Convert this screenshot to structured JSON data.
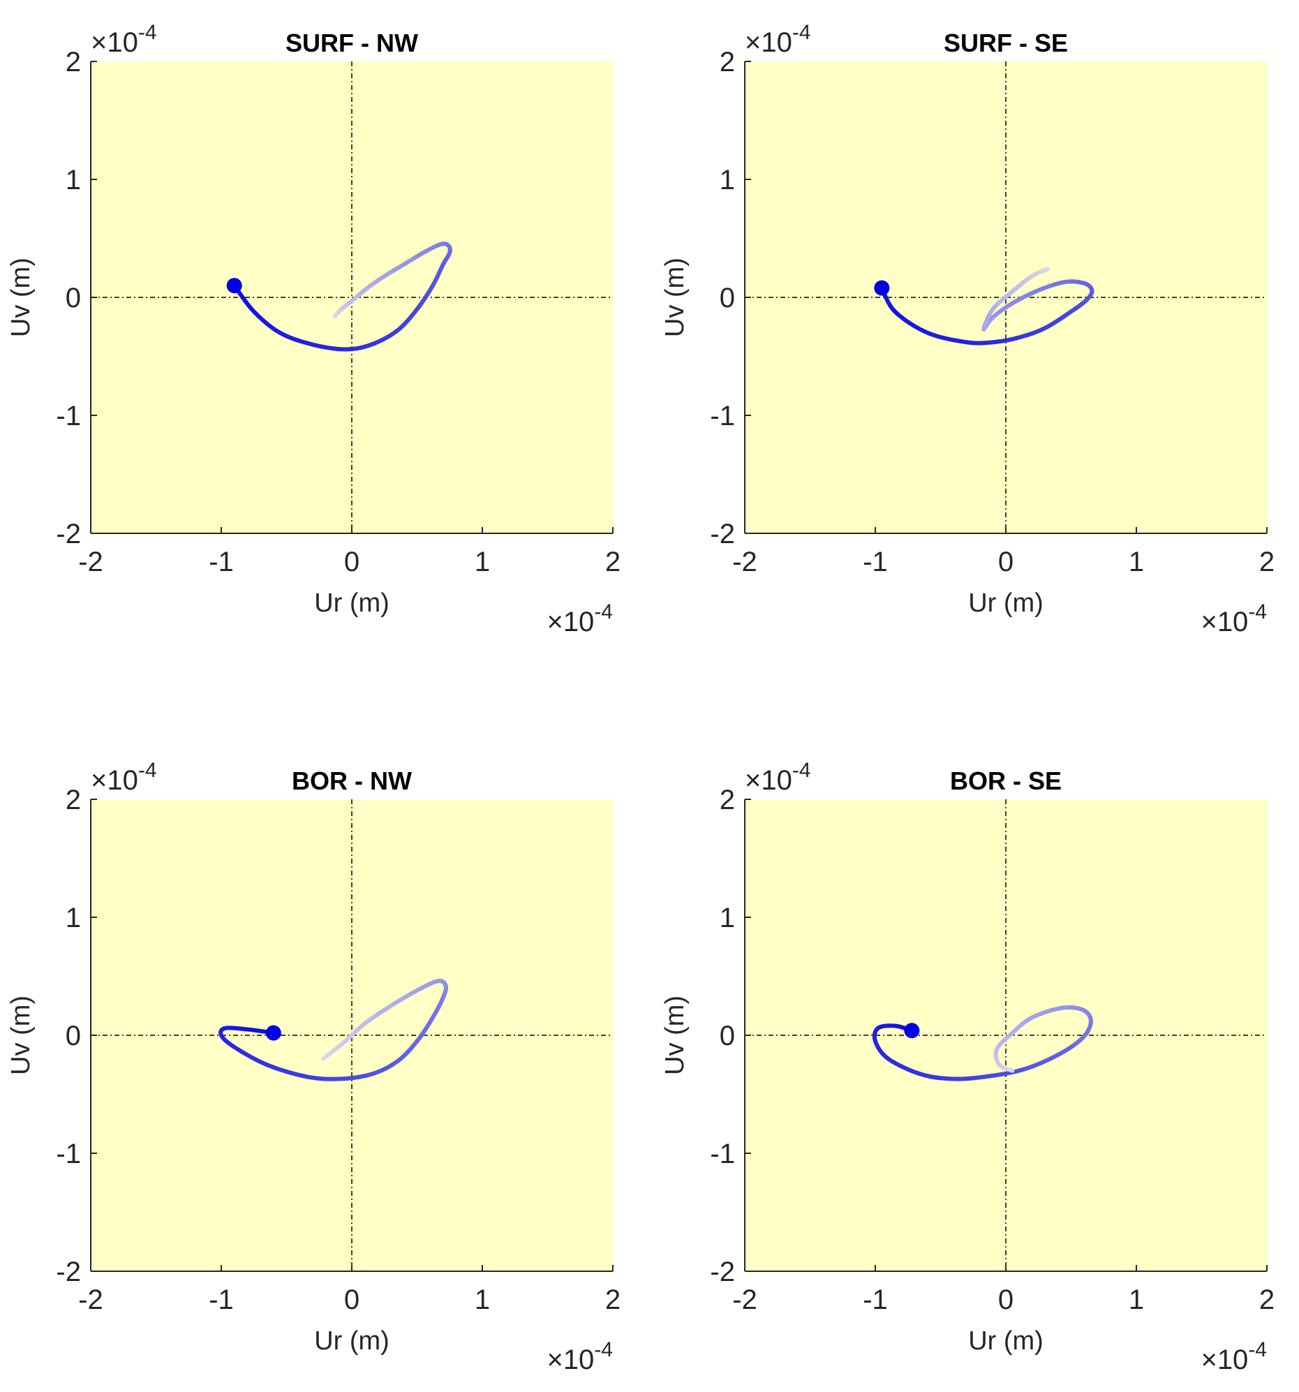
{
  "chart_data": [
    {
      "type": "line",
      "title": "SURF - NW",
      "xlabel": "Ur (m)",
      "ylabel": "Uv (m)",
      "x_exponent_label": "×10",
      "y_exponent_label": "×10",
      "exponent": "-4",
      "xlim": [
        -2,
        2
      ],
      "ylim": [
        -2,
        2
      ],
      "xticks": [
        "-2",
        "-1",
        "0",
        "1",
        "2"
      ],
      "yticks": [
        "-2",
        "-1",
        "0",
        "1",
        "2"
      ],
      "grid": "dashed zero lines",
      "background_color": "#ffffc6",
      "line_color": "#1010e0",
      "series": [
        {
          "x": [
            -0.9,
            -0.75,
            -0.55,
            -0.3,
            -0.05,
            0.15,
            0.35,
            0.5,
            0.62,
            0.7,
            0.75,
            0.74,
            0.68,
            0.55,
            0.4,
            0.25,
            0.12,
            0.0,
            -0.08,
            -0.13
          ],
          "y": [
            0.1,
            -0.12,
            -0.3,
            -0.4,
            -0.44,
            -0.4,
            -0.28,
            -0.1,
            0.1,
            0.28,
            0.38,
            0.44,
            0.45,
            0.38,
            0.28,
            0.18,
            0.08,
            -0.03,
            -0.1,
            -0.16
          ]
        }
      ],
      "start_marker": {
        "x": -0.9,
        "y": 0.1
      }
    },
    {
      "type": "line",
      "title": "SURF - SE",
      "xlabel": "Ur (m)",
      "ylabel": "Uv (m)",
      "x_exponent_label": "×10",
      "y_exponent_label": "×10",
      "exponent": "-4",
      "xlim": [
        -2,
        2
      ],
      "ylim": [
        -2,
        2
      ],
      "xticks": [
        "-2",
        "-1",
        "0",
        "1",
        "2"
      ],
      "yticks": [
        "-2",
        "-1",
        "0",
        "1",
        "2"
      ],
      "grid": "dashed zero lines",
      "background_color": "#ffffc6",
      "line_color": "#1010e0",
      "series": [
        {
          "x": [
            -0.95,
            -0.85,
            -0.6,
            -0.3,
            -0.1,
            0.1,
            0.3,
            0.5,
            0.62,
            0.66,
            0.6,
            0.45,
            0.25,
            0.05,
            -0.1,
            -0.17,
            -0.1,
            0.05,
            0.2,
            0.32
          ],
          "y": [
            0.08,
            -0.12,
            -0.3,
            -0.38,
            -0.38,
            -0.34,
            -0.26,
            -0.12,
            -0.02,
            0.06,
            0.12,
            0.13,
            0.06,
            -0.05,
            -0.17,
            -0.27,
            -0.1,
            0.05,
            0.18,
            0.24
          ]
        }
      ],
      "start_marker": {
        "x": -0.95,
        "y": 0.08
      }
    },
    {
      "type": "line",
      "title": "BOR - NW",
      "xlabel": "Ur (m)",
      "ylabel": "Uv (m)",
      "x_exponent_label": "×10",
      "y_exponent_label": "×10",
      "exponent": "-4",
      "xlim": [
        -2,
        2
      ],
      "ylim": [
        -2,
        2
      ],
      "xticks": [
        "-2",
        "-1",
        "0",
        "1",
        "2"
      ],
      "yticks": [
        "-2",
        "-1",
        "0",
        "1",
        "2"
      ],
      "grid": "dashed zero lines",
      "background_color": "#ffffc6",
      "line_color": "#1010e0",
      "series": [
        {
          "x": [
            -0.6,
            -0.8,
            -0.97,
            -1.0,
            -0.9,
            -0.65,
            -0.35,
            -0.1,
            0.15,
            0.35,
            0.5,
            0.62,
            0.7,
            0.72,
            0.66,
            0.5,
            0.3,
            0.1,
            -0.05,
            -0.22
          ],
          "y": [
            0.02,
            0.05,
            0.06,
            0.0,
            -0.1,
            -0.25,
            -0.35,
            -0.37,
            -0.33,
            -0.22,
            -0.05,
            0.15,
            0.32,
            0.42,
            0.46,
            0.38,
            0.25,
            0.1,
            -0.05,
            -0.2
          ]
        }
      ],
      "start_marker": {
        "x": -0.6,
        "y": 0.02
      }
    },
    {
      "type": "line",
      "title": "BOR - SE",
      "xlabel": "Ur (m)",
      "ylabel": "Uv (m)",
      "x_exponent_label": "×10",
      "y_exponent_label": "×10",
      "exponent": "-4",
      "xlim": [
        -2,
        2
      ],
      "ylim": [
        -2,
        2
      ],
      "xticks": [
        "-2",
        "-1",
        "0",
        "1",
        "2"
      ],
      "yticks": [
        "-2",
        "-1",
        "0",
        "1",
        "2"
      ],
      "grid": "dashed zero lines",
      "background_color": "#ffffc6",
      "line_color": "#1010e0",
      "series": [
        {
          "x": [
            -0.72,
            -0.85,
            -0.98,
            -1.0,
            -0.9,
            -0.65,
            -0.4,
            -0.15,
            0.1,
            0.3,
            0.5,
            0.62,
            0.65,
            0.58,
            0.42,
            0.2,
            0.05,
            -0.07,
            -0.05,
            0.05
          ],
          "y": [
            0.04,
            0.08,
            0.06,
            -0.05,
            -0.2,
            -0.33,
            -0.37,
            -0.35,
            -0.3,
            -0.22,
            -0.1,
            0.02,
            0.14,
            0.22,
            0.23,
            0.15,
            0.02,
            -0.12,
            -0.25,
            -0.3
          ]
        }
      ],
      "start_marker": {
        "x": -0.72,
        "y": 0.04
      }
    }
  ]
}
